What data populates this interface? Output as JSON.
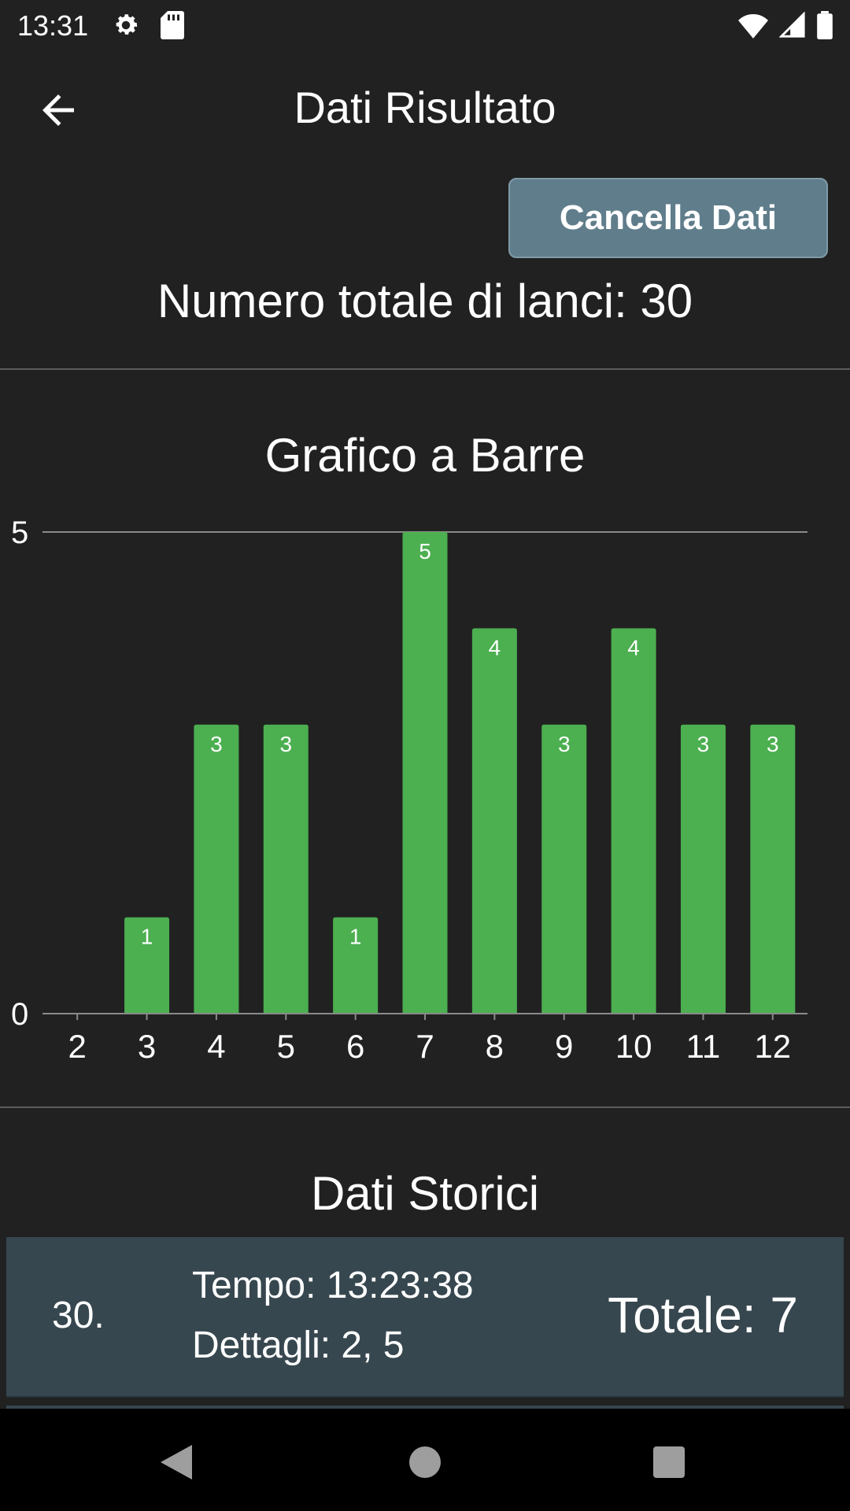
{
  "status_bar": {
    "time": "13:31",
    "icons": [
      "gear-icon",
      "sd-card-icon",
      "wifi-icon",
      "signal-icon",
      "battery-icon"
    ]
  },
  "app_bar": {
    "title": "Dati Risultato",
    "back_icon": "arrow-back-icon"
  },
  "actions": {
    "clear_label": "Cancella Dati"
  },
  "summary": {
    "total_throws_text": "Numero totale di lanci: 30"
  },
  "chart": {
    "title": "Grafico a Barre"
  },
  "chart_data": {
    "type": "bar",
    "title": "Grafico a Barre",
    "categories": [
      "2",
      "3",
      "4",
      "5",
      "6",
      "7",
      "8",
      "9",
      "10",
      "11",
      "12"
    ],
    "values": [
      0,
      1,
      3,
      3,
      1,
      5,
      4,
      3,
      4,
      3,
      3
    ],
    "ylim": [
      0,
      5
    ],
    "y_ticks": [
      "0",
      "5"
    ],
    "bar_color": "#4caf50",
    "grid": true
  },
  "history": {
    "title": "Dati Storici",
    "entries": [
      {
        "index": "30.",
        "time": "Tempo: 13:23:38",
        "details": "Dettagli: 2, 5",
        "total": "Totale: 7"
      }
    ]
  },
  "nav_bar": {
    "icons": [
      "nav-back-icon",
      "nav-home-icon",
      "nav-recent-icon"
    ]
  },
  "colors": {
    "background": "#212121",
    "button": "#607d8b",
    "card": "#37474f",
    "bar": "#4caf50"
  }
}
